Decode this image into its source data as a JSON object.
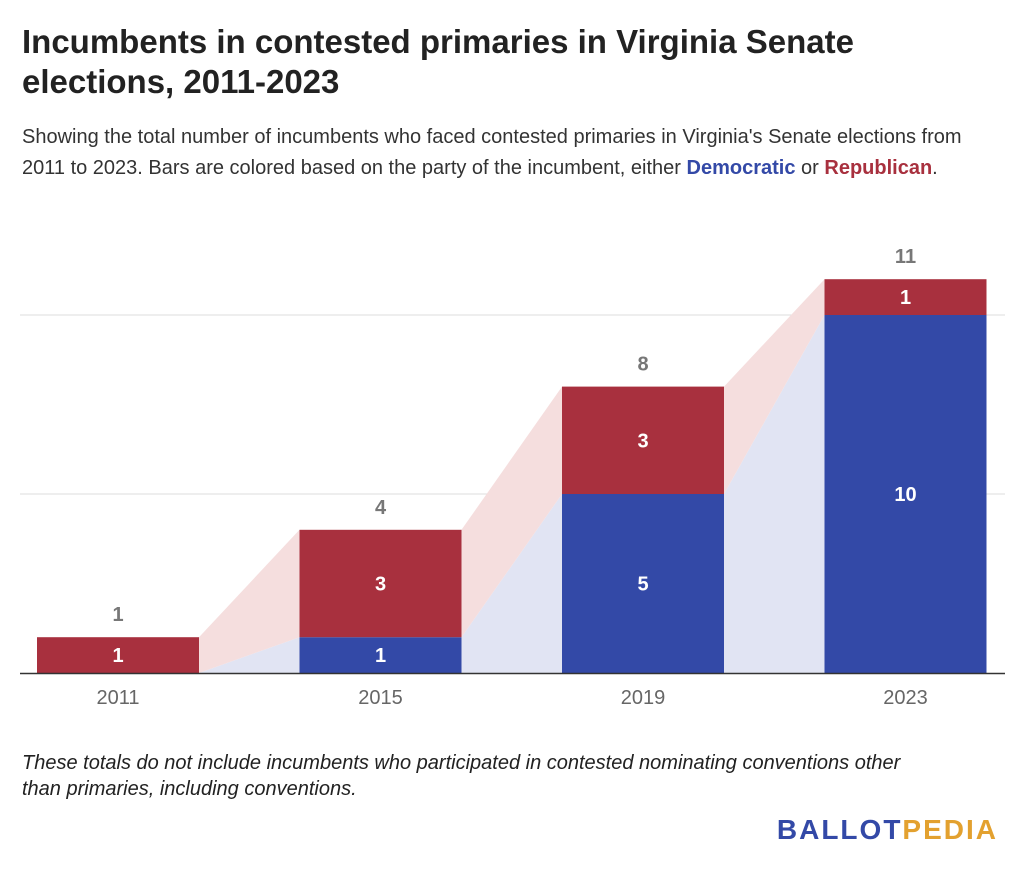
{
  "title": "Incumbents in contested primaries in Virginia Senate elections, 2011-2023",
  "subtitle": {
    "text": "Showing the total number of incumbents who faced contested primaries in Virginia's Senate elections from 2011 to 2023. Bars are colored based on the party of the incumbent, either",
    "dem_label": "Democratic",
    "or_text": "or",
    "rep_label": "Republican",
    "end_text": "."
  },
  "footnote": "These totals do not include incumbents who participated in contested nominating conventions other than primaries, including conventions.",
  "logo": {
    "part1": "BALLOT",
    "part2": "PEDIA"
  },
  "colors": {
    "democratic": "#3349a7",
    "republican": "#a8303e",
    "democratic_band": "#e1e4f3",
    "republican_band": "#f5dede",
    "total_label": "#777777"
  },
  "chart_data": {
    "type": "bar",
    "stacked": true,
    "categories": [
      "2011",
      "2015",
      "2019",
      "2023"
    ],
    "series": [
      {
        "name": "Democratic",
        "values": [
          0,
          1,
          5,
          10
        ]
      },
      {
        "name": "Republican",
        "values": [
          1,
          3,
          3,
          1
        ]
      }
    ],
    "totals": [
      1,
      4,
      8,
      11
    ],
    "title": "",
    "xlabel": "",
    "ylabel": "",
    "ylim": [
      0,
      11
    ],
    "grid": true,
    "legend": "none"
  }
}
